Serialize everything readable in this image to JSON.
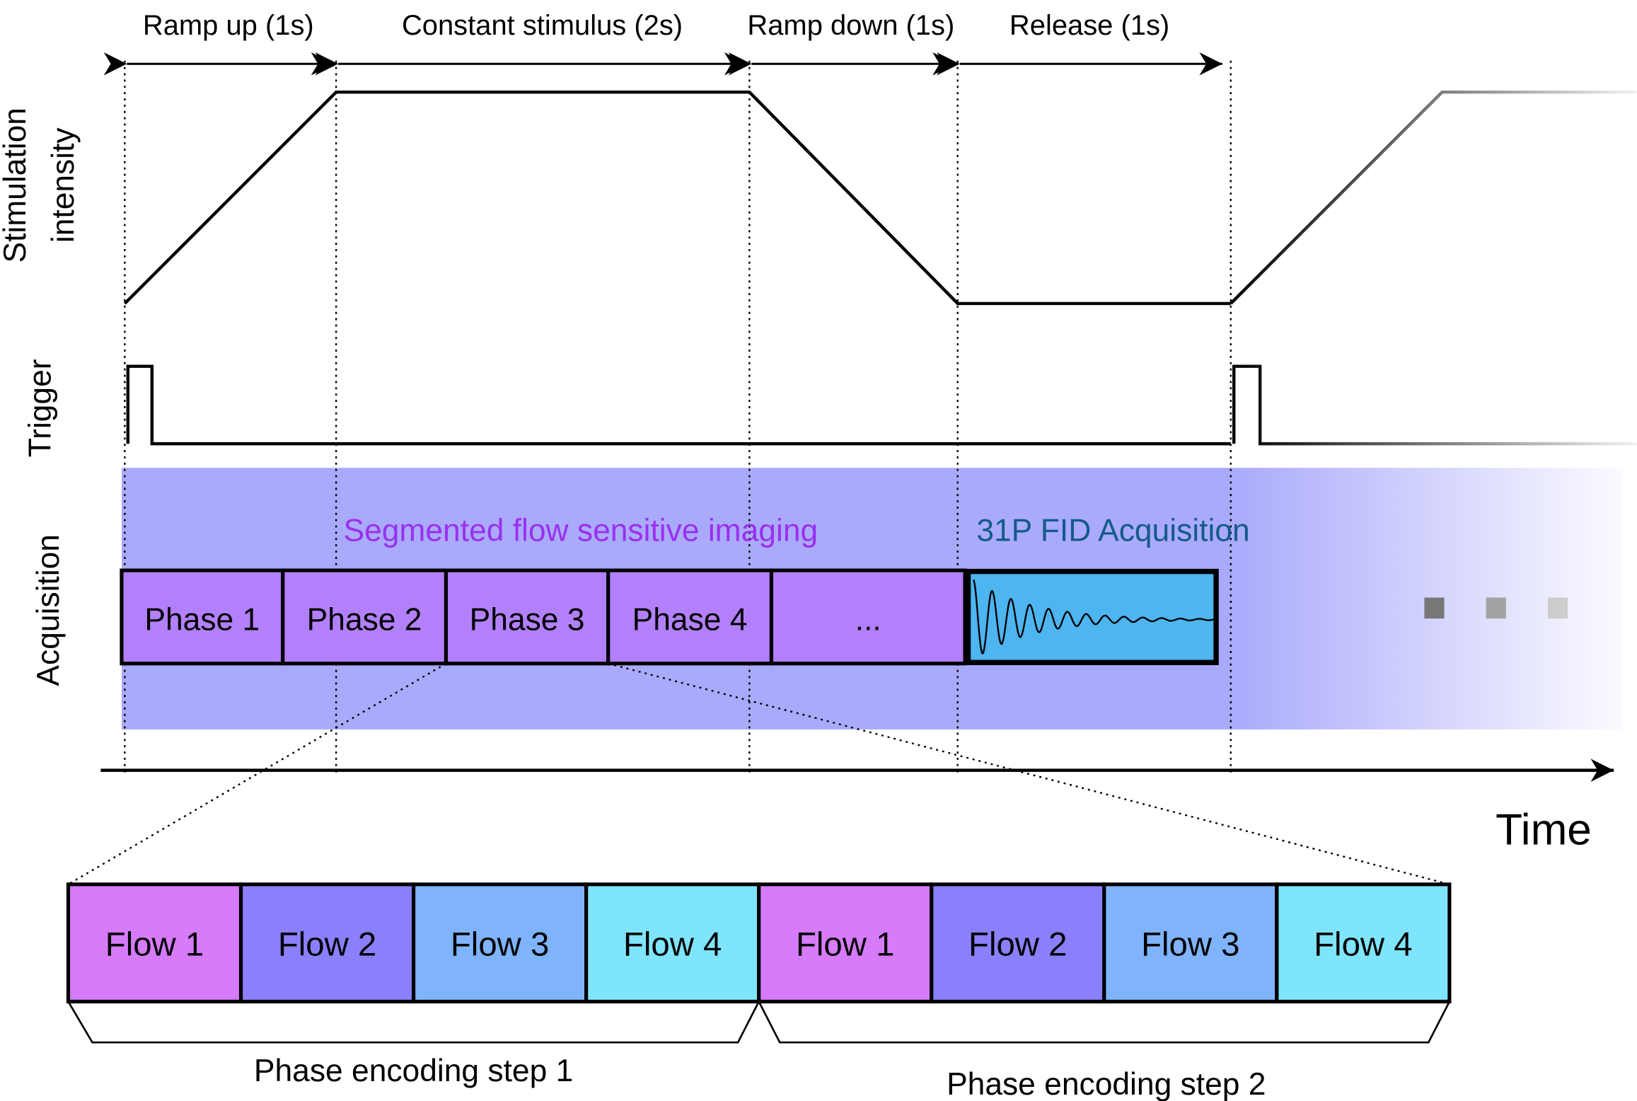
{
  "timing_labels": [
    "Ramp up (1s)",
    "Constant stimulus (2s)",
    "Ramp down (1s)",
    "Release (1s)"
  ],
  "y_labels": {
    "stimulation_line1": "Stimulation",
    "stimulation_line2": "intensity",
    "trigger": "Trigger",
    "acquisition": "Acquisition"
  },
  "acquisition": {
    "segmented_label": "Segmented flow sensitive imaging",
    "fid_label": "31P FID Acquisition",
    "phases": [
      "Phase 1",
      "Phase 2",
      "Phase 3",
      "Phase 4",
      "..."
    ]
  },
  "time_label": "Time",
  "flows": [
    "Flow 1",
    "Flow 2",
    "Flow 3",
    "Flow 4",
    "Flow 1",
    "Flow 2",
    "Flow 3",
    "Flow 4"
  ],
  "phase_encoding_steps": [
    "Phase encoding step 1",
    "Phase encoding step 2"
  ],
  "colors": {
    "acquisition_bg": "#aaaafc",
    "phase_fill": "#b380fc",
    "fid_fill": "#4db5f0",
    "segmented_text": "#9a30f0",
    "fid_text": "#155a8a",
    "flow1": "#d67bfa",
    "flow2": "#8b80fc",
    "flow3": "#7fb4fc",
    "flow4": "#7fe5fc"
  }
}
